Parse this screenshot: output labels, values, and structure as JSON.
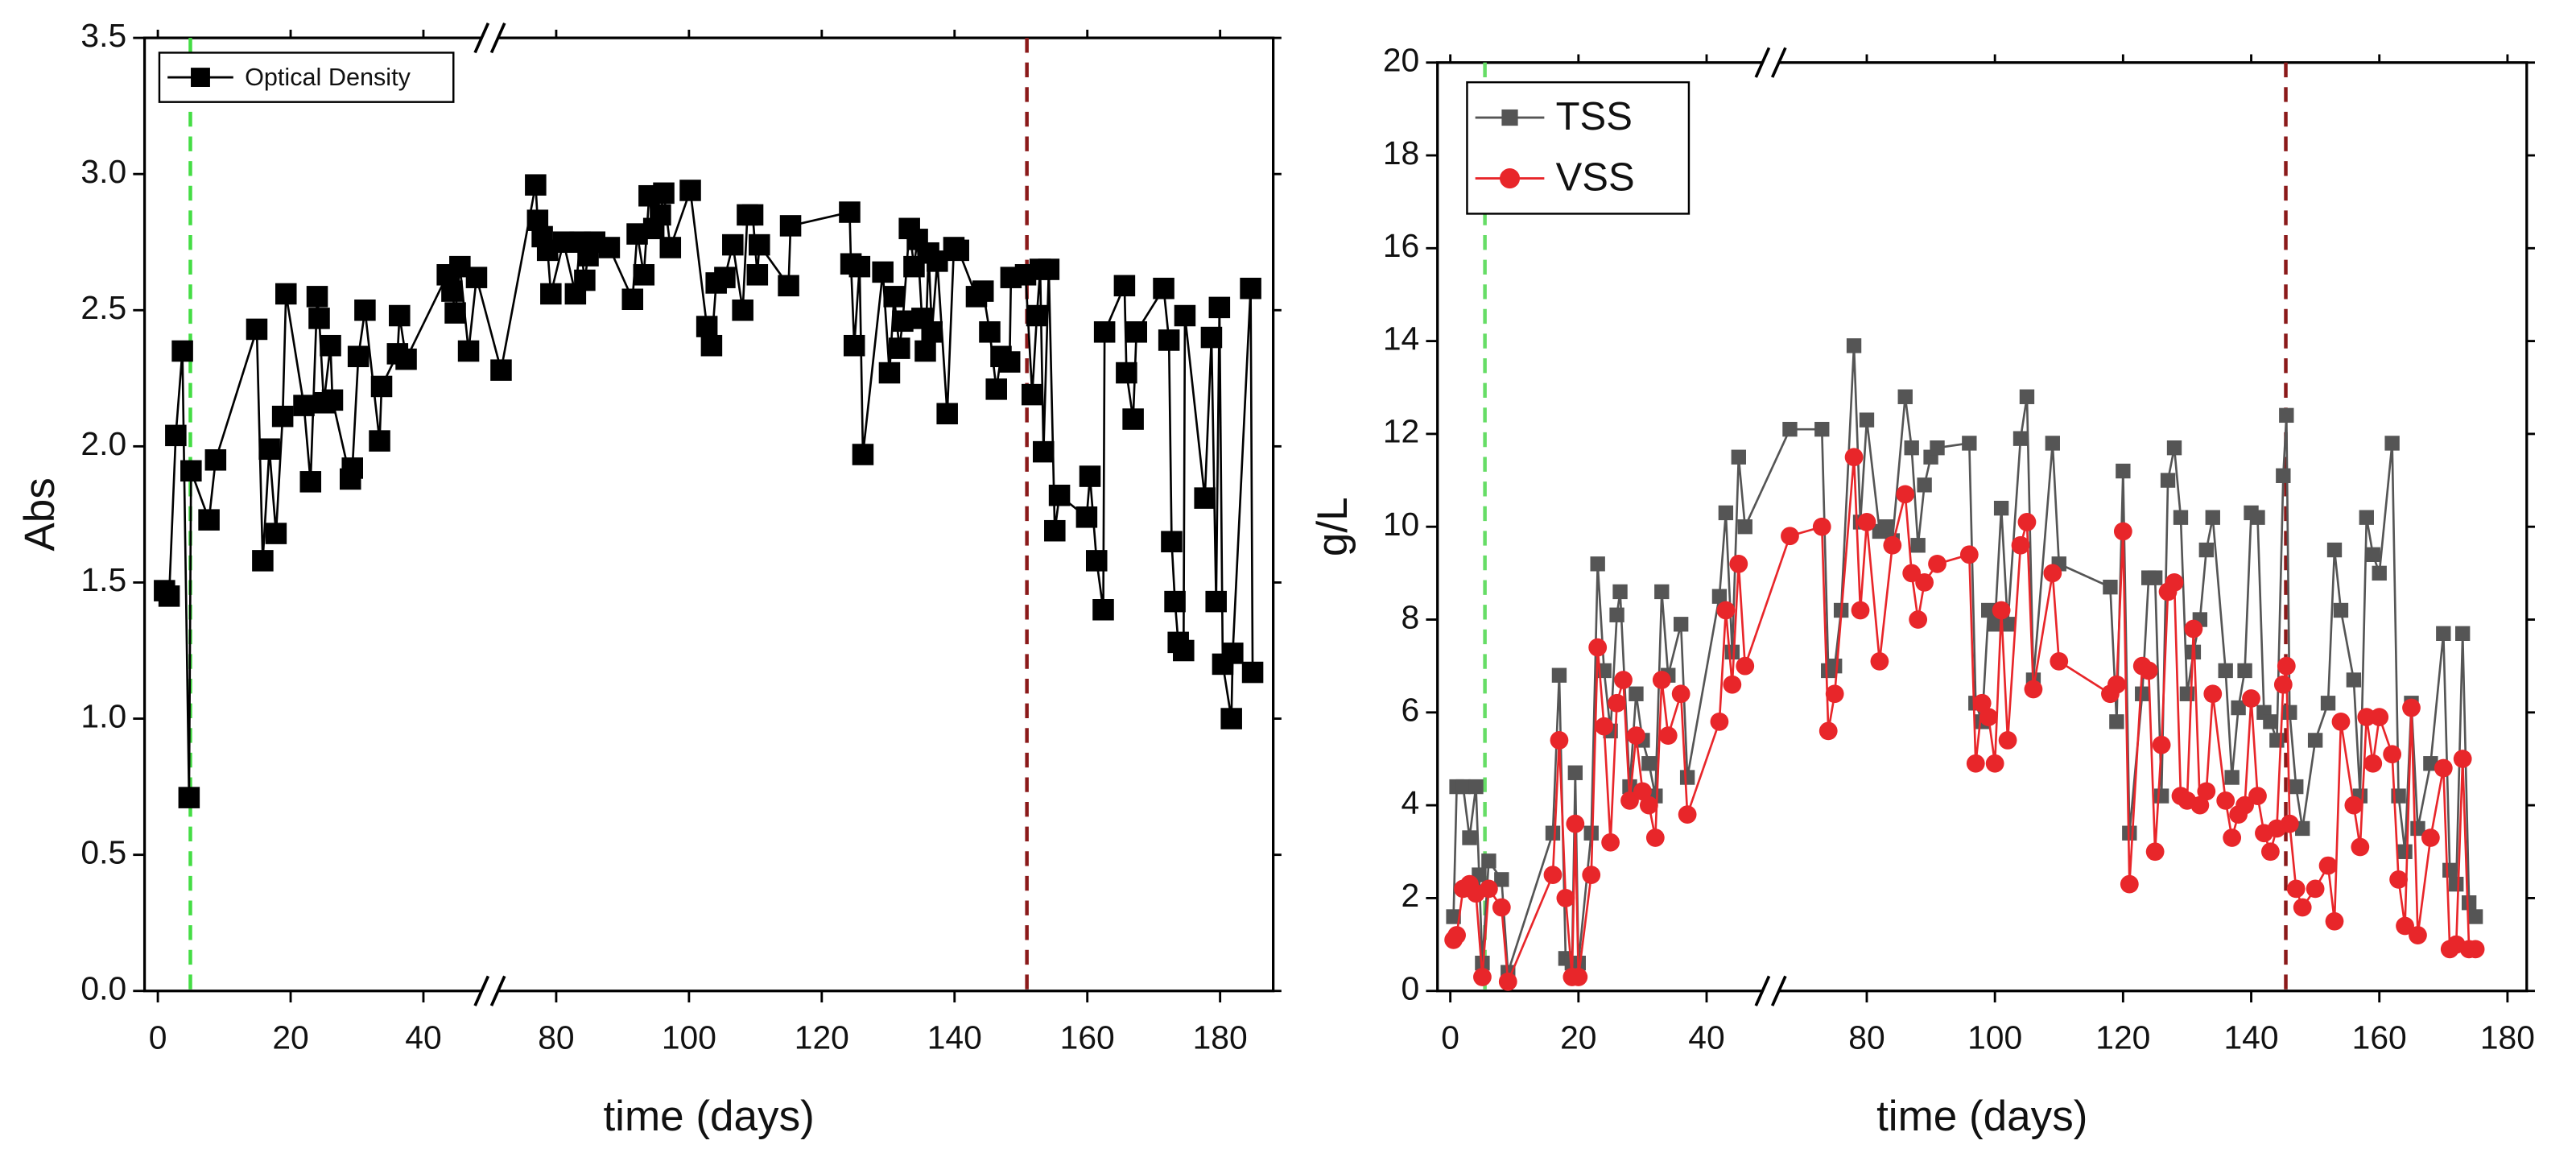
{
  "chart_data": [
    {
      "type": "line",
      "xlabel": "time (days)",
      "ylabel": "Abs",
      "xlim": [
        -2,
        188
      ],
      "xbreak": [
        50,
        70
      ],
      "xticks": [
        0,
        20,
        40,
        80,
        100,
        120,
        140,
        160,
        180
      ],
      "ylim": [
        0,
        3.5
      ],
      "yticks": [
        {
          "value": 0,
          "label": "0.0"
        },
        {
          "value": 0.5,
          "label": "0.5"
        },
        {
          "value": 1,
          "label": "1.0"
        },
        {
          "value": 1.5,
          "label": "1.5"
        },
        {
          "value": 2,
          "label": "2.0"
        },
        {
          "value": 2.5,
          "label": "2.5"
        },
        {
          "value": 3,
          "label": "3.0"
        },
        {
          "value": 3.5,
          "label": "3.5"
        }
      ],
      "grid": false,
      "legend": "upper left",
      "vlines": [
        {
          "x": 4.9,
          "color": "#44dd44"
        },
        {
          "x": 150.9,
          "color": "#8b1a1a"
        }
      ],
      "series": [
        {
          "name": "Optical Density",
          "color": "#000000",
          "marker": "square",
          "x": [
            1.0,
            1.7,
            2.7,
            3.7,
            4.7,
            5.0,
            7.7,
            8.7,
            14.9,
            15.8,
            16.8,
            17.8,
            18.8,
            19.3,
            22.0,
            23.0,
            24.0,
            24.3,
            25.0,
            26.0,
            26.3,
            29.0,
            29.3,
            30.2,
            31.2,
            33.4,
            33.7,
            36.1,
            36.4,
            37.4,
            43.6,
            44.3,
            44.8,
            45.5,
            46.8,
            48.0,
            71.7,
            76.9,
            77.2,
            77.9,
            78.7,
            79.2,
            81.1,
            82.9,
            83.6,
            84.3,
            84.8,
            85.8,
            88.0,
            91.5,
            92.2,
            93.2,
            94.0,
            94.7,
            95.7,
            96.2,
            97.2,
            100.2,
            102.7,
            103.4,
            104.1,
            105.4,
            106.6,
            108.1,
            108.8,
            109.6,
            110.3,
            110.6,
            115.0,
            115.3,
            124.2,
            124.4,
            124.9,
            125.7,
            126.2,
            129.2,
            130.2,
            130.9,
            131.7,
            132.2,
            133.2,
            133.9,
            134.4,
            135.1,
            135.6,
            136.1,
            136.6,
            137.4,
            138.9,
            139.9,
            140.6,
            143.3,
            144.3,
            145.3,
            146.3,
            147.0,
            148.3,
            148.5,
            150.7,
            151.7,
            152.4,
            152.9,
            153.4,
            154.2,
            155.1,
            155.8,
            159.9,
            160.4,
            161.4,
            162.4,
            162.6,
            165.6,
            165.9,
            166.9,
            167.4,
            171.5,
            172.3,
            172.7,
            173.2,
            173.7,
            174.5,
            174.7,
            177.7,
            178.7,
            179.4,
            179.9,
            180.4,
            181.7,
            181.9,
            184.6,
            184.9
          ],
          "values": [
            1.47,
            1.45,
            2.04,
            2.35,
            0.71,
            1.91,
            1.73,
            1.95,
            2.43,
            1.58,
            1.99,
            1.68,
            2.11,
            2.56,
            2.15,
            1.87,
            2.55,
            2.47,
            2.16,
            2.37,
            2.17,
            1.88,
            1.92,
            2.33,
            2.5,
            2.02,
            2.22,
            2.34,
            2.48,
            2.32,
            2.63,
            2.57,
            2.49,
            2.66,
            2.35,
            2.62,
            2.28,
            2.96,
            2.83,
            2.77,
            2.72,
            2.56,
            2.75,
            2.56,
            2.75,
            2.61,
            2.7,
            2.75,
            2.73,
            2.54,
            2.78,
            2.63,
            2.92,
            2.8,
            2.85,
            2.93,
            2.73,
            2.94,
            2.44,
            2.37,
            2.6,
            2.62,
            2.74,
            2.5,
            2.85,
            2.85,
            2.63,
            2.74,
            2.59,
            2.81,
            2.86,
            2.67,
            2.37,
            2.66,
            1.97,
            2.64,
            2.27,
            2.55,
            2.36,
            2.46,
            2.8,
            2.66,
            2.76,
            2.47,
            2.35,
            2.71,
            2.42,
            2.68,
            2.12,
            2.73,
            2.72,
            2.55,
            2.57,
            2.42,
            2.21,
            2.33,
            2.31,
            2.62,
            2.63,
            2.19,
            2.48,
            2.65,
            1.98,
            2.65,
            1.69,
            1.82,
            1.74,
            1.89,
            1.58,
            1.4,
            2.42,
            2.59,
            2.27,
            2.1,
            2.42,
            2.58,
            2.39,
            1.65,
            1.43,
            1.28,
            1.25,
            2.48,
            1.81,
            2.4,
            1.43,
            2.51,
            1.2,
            1.0,
            1.24,
            2.58,
            1.17
          ]
        }
      ]
    },
    {
      "type": "line",
      "xlabel": "time (days)",
      "ylabel": "g/L",
      "xlim": [
        -2,
        183
      ],
      "xbreak": [
        50,
        65
      ],
      "xticks": [
        0,
        20,
        40,
        80,
        100,
        120,
        140,
        160,
        180
      ],
      "ylim": [
        0,
        20
      ],
      "yticks": [
        0,
        2,
        4,
        6,
        8,
        10,
        12,
        14,
        16,
        18,
        20
      ],
      "grid": false,
      "legend": "upper left",
      "vlines": [
        {
          "x": 5.4,
          "color": "#66dd66"
        },
        {
          "x": 145.4,
          "color": "#8b1a1a"
        }
      ],
      "series": [
        {
          "name": "TSS",
          "color": "#555555",
          "marker": "square",
          "x": [
            0.5,
            1,
            2,
            3,
            4,
            4.5,
            5,
            6,
            8,
            9,
            16,
            17,
            18,
            19,
            19.5,
            20,
            22,
            23,
            24,
            25,
            26,
            26.5,
            28,
            29,
            30,
            31,
            32,
            33,
            34,
            36,
            37,
            42,
            43,
            44,
            45,
            46,
            68,
            73,
            74,
            75,
            76,
            78,
            79,
            80,
            82,
            83,
            84,
            86,
            87,
            88,
            89,
            90,
            91,
            96,
            97,
            98,
            99,
            100,
            101,
            102,
            104,
            105,
            106,
            109,
            110,
            118,
            119,
            120,
            121,
            123,
            124,
            125,
            126,
            127,
            128,
            129,
            130,
            131,
            132,
            133,
            134,
            136,
            137,
            138,
            139,
            140,
            141,
            142,
            143,
            144,
            145,
            145.5,
            146,
            147,
            148,
            150,
            152,
            153,
            154,
            156,
            157,
            158,
            159,
            160,
            162,
            163,
            164,
            165,
            166,
            168,
            170,
            171,
            172,
            173,
            174,
            175
          ],
          "values": [
            1.6,
            4.4,
            4.4,
            3.3,
            4.4,
            2.5,
            0.6,
            2.8,
            2.4,
            0.4,
            3.4,
            6.8,
            0.7,
            0.6,
            4.7,
            0.6,
            3.4,
            9.2,
            6.9,
            5.6,
            8.1,
            8.6,
            4.4,
            6.4,
            5.4,
            4.9,
            4.2,
            8.6,
            6.8,
            7.9,
            4.6,
            8.5,
            10.3,
            7.3,
            11.5,
            10.0,
            12.1,
            12.1,
            6.9,
            7.0,
            8.2,
            13.9,
            10.1,
            12.3,
            9.9,
            10.0,
            9.7,
            12.8,
            11.7,
            9.6,
            10.9,
            11.5,
            11.7,
            11.8,
            6.2,
            5.8,
            8.2,
            7.9,
            10.4,
            7.9,
            11.9,
            12.8,
            6.7,
            11.8,
            9.2,
            8.7,
            5.8,
            11.2,
            3.4,
            6.4,
            8.9,
            8.9,
            4.2,
            11.0,
            11.7,
            10.2,
            6.4,
            7.3,
            8.0,
            9.5,
            10.2,
            6.9,
            4.6,
            6.1,
            6.9,
            10.3,
            10.2,
            6.0,
            5.8,
            5.4,
            11.1,
            12.4,
            6.0,
            4.4,
            3.5,
            5.4,
            6.2,
            9.5,
            8.2,
            6.7,
            4.2,
            10.2,
            9.4,
            9.0,
            11.8,
            4.2,
            3.0,
            6.2,
            3.5,
            4.9,
            7.7,
            2.6,
            2.3,
            7.7,
            1.9,
            1.6
          ]
        },
        {
          "name": "VSS",
          "color": "#e8262a",
          "marker": "circle",
          "x": [
            0.5,
            1,
            2,
            3,
            4,
            5,
            6,
            8,
            9,
            16,
            17,
            18,
            19,
            19.5,
            20,
            22,
            23,
            24,
            25,
            26,
            27,
            28,
            29,
            30,
            31,
            32,
            33,
            34,
            36,
            37,
            42,
            43,
            44,
            45,
            46,
            68,
            73,
            74,
            75,
            78,
            79,
            80,
            82,
            84,
            86,
            87,
            88,
            89,
            91,
            96,
            97,
            98,
            99,
            100,
            101,
            102,
            104,
            105,
            106,
            109,
            110,
            118,
            119,
            120,
            121,
            123,
            124,
            125,
            126,
            127,
            128,
            129,
            130,
            131,
            132,
            133,
            134,
            136,
            137,
            138,
            139,
            140,
            141,
            142,
            143,
            144,
            145,
            145.5,
            146,
            147,
            148,
            150,
            152,
            153,
            154,
            156,
            157,
            158,
            159,
            160,
            162,
            163,
            164,
            165,
            166,
            168,
            170,
            171,
            172,
            173,
            174,
            175
          ],
          "values": [
            1.1,
            1.2,
            2.2,
            2.3,
            2.1,
            0.3,
            2.2,
            1.8,
            0.2,
            2.5,
            5.4,
            2.0,
            0.3,
            3.6,
            0.3,
            2.5,
            7.4,
            5.7,
            3.2,
            6.2,
            6.7,
            4.1,
            5.5,
            4.3,
            4.0,
            3.3,
            6.7,
            5.5,
            6.4,
            3.8,
            5.8,
            8.2,
            6.6,
            9.2,
            7.0,
            9.8,
            10.0,
            5.6,
            6.4,
            11.5,
            8.2,
            10.1,
            7.1,
            9.6,
            10.7,
            9.0,
            8.0,
            8.8,
            9.2,
            9.4,
            4.9,
            6.2,
            5.9,
            4.9,
            8.2,
            5.4,
            9.6,
            10.1,
            6.5,
            9.0,
            7.1,
            6.4,
            6.6,
            9.9,
            2.3,
            7.0,
            6.9,
            3.0,
            5.3,
            8.6,
            8.8,
            4.2,
            4.1,
            7.8,
            4.0,
            4.3,
            6.4,
            4.1,
            3.3,
            3.8,
            4.0,
            6.3,
            4.2,
            3.4,
            3.0,
            3.5,
            6.6,
            7.0,
            3.6,
            2.2,
            1.8,
            2.2,
            2.7,
            1.5,
            5.8,
            4.0,
            3.1,
            5.9,
            4.9,
            5.9,
            5.1,
            2.4,
            1.4,
            6.1,
            1.2,
            3.3,
            4.8,
            0.9,
            1.0,
            5.0,
            0.9,
            0.9
          ]
        }
      ]
    }
  ]
}
